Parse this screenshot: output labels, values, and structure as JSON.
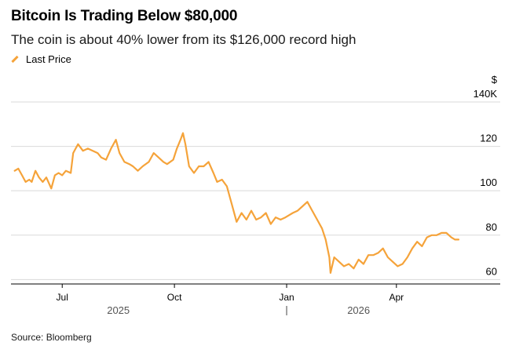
{
  "header": {
    "title": "Bitcoin Is Trading Below $80,000",
    "subtitle": "The coin is about 40% lower from its $126,000 record high"
  },
  "source": "Source: Bloomberg",
  "chart_data": {
    "type": "line",
    "series": [
      {
        "name": "Last Price",
        "color": "#f5a33a",
        "x": [
          "2025-05-23",
          "2025-05-26",
          "2025-05-29",
          "2025-06-01",
          "2025-06-04",
          "2025-06-06",
          "2025-06-09",
          "2025-06-12",
          "2025-06-15",
          "2025-06-18",
          "2025-06-22",
          "2025-06-25",
          "2025-06-28",
          "2025-07-01",
          "2025-07-04",
          "2025-07-08",
          "2025-07-10",
          "2025-07-12",
          "2025-07-14",
          "2025-07-18",
          "2025-07-22",
          "2025-07-26",
          "2025-07-30",
          "2025-08-02",
          "2025-08-06",
          "2025-08-10",
          "2025-08-14",
          "2025-08-17",
          "2025-08-21",
          "2025-08-25",
          "2025-08-28",
          "2025-09-01",
          "2025-09-05",
          "2025-09-10",
          "2025-09-14",
          "2025-09-18",
          "2025-09-22",
          "2025-09-25",
          "2025-09-30",
          "2025-10-03",
          "2025-10-06",
          "2025-10-08",
          "2025-10-10",
          "2025-10-13",
          "2025-10-17",
          "2025-10-21",
          "2025-10-25",
          "2025-10-29",
          "2025-11-02",
          "2025-11-05",
          "2025-11-09",
          "2025-11-13",
          "2025-11-17",
          "2025-11-21",
          "2025-11-25",
          "2025-11-29",
          "2025-12-03",
          "2025-12-07",
          "2025-12-11",
          "2025-12-15",
          "2025-12-19",
          "2025-12-23",
          "2025-12-27",
          "2025-12-31",
          "2026-01-03",
          "2026-01-06",
          "2026-01-10",
          "2026-01-14",
          "2026-01-18",
          "2026-01-22",
          "2026-01-26",
          "2026-01-30",
          "2026-02-02",
          "2026-02-05",
          "2026-02-06",
          "2026-02-09",
          "2026-02-13",
          "2026-02-17",
          "2026-02-21",
          "2026-02-25",
          "2026-03-01",
          "2026-03-05",
          "2026-03-09",
          "2026-03-13",
          "2026-03-17",
          "2026-03-21",
          "2026-03-25",
          "2026-03-29",
          "2026-04-02",
          "2026-04-06",
          "2026-04-10",
          "2026-04-14",
          "2026-04-18",
          "2026-04-22",
          "2026-04-26",
          "2026-04-30",
          "2026-05-04",
          "2026-05-08",
          "2026-05-12",
          "2026-05-16",
          "2026-05-19",
          "2026-05-22"
        ],
        "values": [
          109,
          110,
          107,
          104,
          105,
          104,
          109,
          106,
          104,
          106,
          101,
          107,
          108,
          107,
          109,
          108,
          117,
          119,
          121,
          118,
          119,
          118,
          117,
          115,
          114,
          119,
          123,
          117,
          113,
          112,
          111,
          109,
          111,
          113,
          117,
          115,
          113,
          112,
          114,
          119,
          123,
          126,
          121,
          111,
          108,
          111,
          111,
          113,
          108,
          104,
          105,
          102,
          94,
          86,
          90,
          87,
          91,
          87,
          88,
          90,
          85,
          88,
          87,
          88,
          89,
          90,
          91,
          93,
          95,
          91,
          87,
          83,
          78,
          70,
          63,
          70,
          68,
          66,
          67,
          65,
          69,
          67,
          71,
          71,
          72,
          74,
          70,
          68,
          66,
          67,
          70,
          74,
          77,
          75,
          79,
          80,
          80,
          81,
          81,
          79,
          78,
          78
        ]
      }
    ],
    "y_axis": {
      "unit": "$",
      "ticks": [
        60,
        80,
        100,
        120,
        140
      ],
      "tick_labels": [
        "60",
        "80",
        "100",
        "120",
        "140K"
      ],
      "range": [
        58,
        140
      ],
      "position": "right"
    },
    "x_axis": {
      "range": [
        "2025-05-20",
        "2026-05-31"
      ],
      "month_ticks": [
        {
          "date": "2025-07-01",
          "label": "Jul"
        },
        {
          "date": "2025-10-01",
          "label": "Oct"
        },
        {
          "date": "2026-01-01",
          "label": "Jan"
        },
        {
          "date": "2026-04-01",
          "label": "Apr"
        }
      ],
      "year_labels": [
        {
          "date": "2025-08-16",
          "label": "2025"
        },
        {
          "date": "2026-03-01",
          "label": "2026"
        }
      ],
      "year_divider": "2026-01-01"
    },
    "grid": "horizontal"
  }
}
